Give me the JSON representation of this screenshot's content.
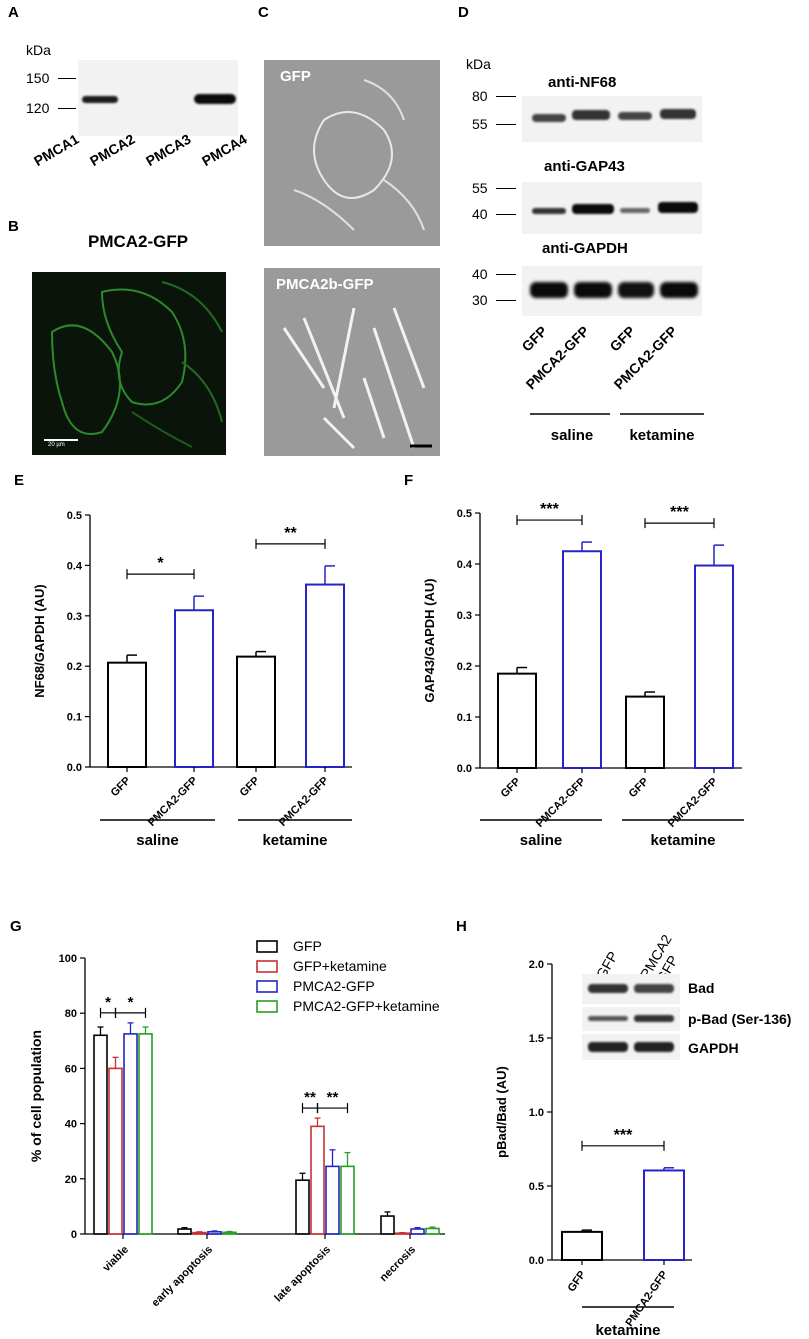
{
  "panels": {
    "A": {
      "label": "A",
      "kda": "kDa",
      "markers": [
        "150",
        "120"
      ],
      "lanes": [
        "PMCA1",
        "PMCA2",
        "PMCA3",
        "PMCA4"
      ]
    },
    "B": {
      "label": "B",
      "title": "PMCA2-GFP",
      "scale": "20 µm"
    },
    "C": {
      "label": "C",
      "top_label": "GFP",
      "bottom_label": "PMCA2b-GFP"
    },
    "D": {
      "label": "D",
      "kda": "kDa",
      "blots": [
        {
          "title": "anti-NF68",
          "markers": [
            "80",
            "55"
          ]
        },
        {
          "title": "anti-GAP43",
          "markers": [
            "55",
            "40"
          ]
        },
        {
          "title": "anti-GAPDH",
          "markers": [
            "40",
            "30"
          ]
        }
      ],
      "lanes": [
        "GFP",
        "PMCA2-GFP",
        "GFP",
        "PMCA2-GFP"
      ],
      "groups": [
        "saline",
        "ketamine"
      ]
    },
    "E": {
      "label": "E"
    },
    "F": {
      "label": "F"
    },
    "G": {
      "label": "G"
    },
    "H": {
      "label": "H",
      "lanes": [
        "GFP",
        "PMCA2\n-GFP"
      ],
      "blots": [
        "Bad",
        "p-Bad (Ser-136)",
        "GAPDH"
      ]
    }
  },
  "chart_data": [
    {
      "id": "E",
      "type": "bar",
      "ylabel": "NF68/GAPDH (AU)",
      "ylim": [
        0,
        0.5
      ],
      "yticks": [
        "0.0",
        "0.1",
        "0.2",
        "0.3",
        "0.4",
        "0.5"
      ],
      "categories": [
        "GFP",
        "PMCA2-GFP",
        "GFP",
        "PMCA2-GFP"
      ],
      "values": [
        0.207,
        0.311,
        0.219,
        0.362
      ],
      "errors": [
        0.015,
        0.028,
        0.01,
        0.037
      ],
      "colors": [
        "#000000",
        "#2424c8",
        "#000000",
        "#2424c8"
      ],
      "groups": [
        "saline",
        "ketamine"
      ],
      "significance": [
        {
          "from": 0,
          "to": 1,
          "label": "*"
        },
        {
          "from": 2,
          "to": 3,
          "label": "**"
        }
      ]
    },
    {
      "id": "F",
      "type": "bar",
      "ylabel": "GAP43/GAPDH (AU)",
      "ylim": [
        0,
        0.5
      ],
      "yticks": [
        "0.0",
        "0.1",
        "0.2",
        "0.3",
        "0.4",
        "0.5"
      ],
      "categories": [
        "GFP",
        "PMCA2-GFP",
        "GFP",
        "PMCA2-GFP"
      ],
      "values": [
        0.185,
        0.425,
        0.14,
        0.397
      ],
      "errors": [
        0.012,
        0.018,
        0.009,
        0.04
      ],
      "colors": [
        "#000000",
        "#2424c8",
        "#000000",
        "#2424c8"
      ],
      "groups": [
        "saline",
        "ketamine"
      ],
      "significance": [
        {
          "from": 0,
          "to": 1,
          "label": "***"
        },
        {
          "from": 2,
          "to": 3,
          "label": "***"
        }
      ]
    },
    {
      "id": "G",
      "type": "bar",
      "ylabel": "% of cell population",
      "ylim": [
        0,
        100
      ],
      "yticks": [
        "0",
        "20",
        "40",
        "60",
        "80",
        "100"
      ],
      "categories": [
        "viable",
        "early apoptosis",
        "late apoptosis",
        "necrosis"
      ],
      "series": [
        {
          "name": "GFP",
          "color": "#000000",
          "values": [
            72,
            1.8,
            19.5,
            6.5
          ],
          "errors": [
            3,
            0.5,
            2.5,
            1.5
          ]
        },
        {
          "name": "GFP+ketamine",
          "color": "#c83232",
          "values": [
            60,
            0.5,
            39,
            0.3
          ],
          "errors": [
            4,
            0.3,
            3,
            0.2
          ]
        },
        {
          "name": "PMCA2-GFP",
          "color": "#2424c8",
          "values": [
            72.5,
            0.8,
            24.5,
            1.8
          ],
          "errors": [
            4,
            0.3,
            6,
            0.5
          ]
        },
        {
          "name": "PMCA2-GFP+ketamine",
          "color": "#24a024",
          "values": [
            72.5,
            0.6,
            24.5,
            2.0
          ],
          "errors": [
            2.5,
            0.3,
            5,
            0.5
          ]
        }
      ],
      "legend": "top-right",
      "significance": [
        {
          "cat": 0,
          "from": 0,
          "to": 1,
          "label": "*"
        },
        {
          "cat": 0,
          "from": 1,
          "to": 3,
          "label": "*"
        },
        {
          "cat": 2,
          "from": 0,
          "to": 1,
          "label": "**"
        },
        {
          "cat": 2,
          "from": 1,
          "to": 3,
          "label": "**"
        }
      ]
    },
    {
      "id": "H",
      "type": "bar",
      "ylabel": "pBad/Bad (AU)",
      "ylim": [
        0,
        2.0
      ],
      "yticks": [
        "0.0",
        "0.5",
        "1.0",
        "1.5",
        "2.0"
      ],
      "categories": [
        "GFP",
        "PMCA2-GFP"
      ],
      "values": [
        0.19,
        0.605
      ],
      "errors": [
        0.012,
        0.018
      ],
      "colors": [
        "#000000",
        "#2424c8"
      ],
      "groups": [
        "ketamine"
      ],
      "significance": [
        {
          "from": 0,
          "to": 1,
          "label": "***"
        }
      ]
    }
  ]
}
